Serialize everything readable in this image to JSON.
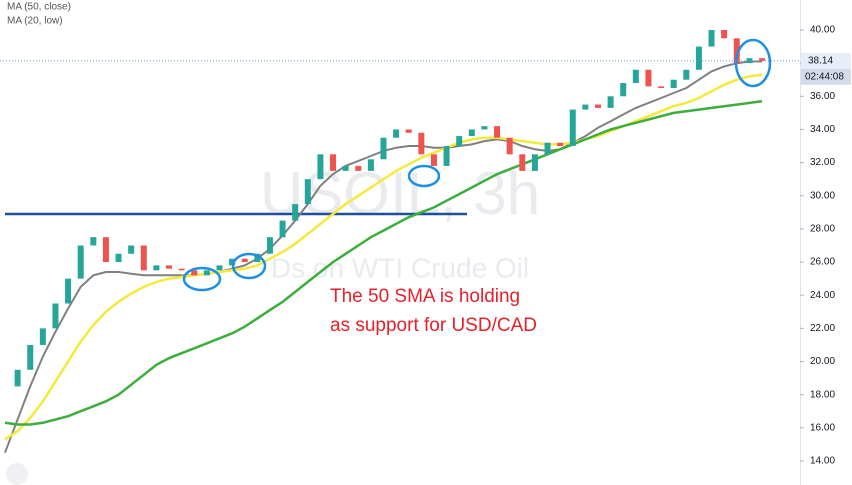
{
  "chart_data": {
    "type": "candlestick",
    "title": "USOIL, 3h",
    "subtitle": "Ds on WTI Crude Oil",
    "legend": [
      "MA (50, close)",
      "MA (20, low)"
    ],
    "annotation": [
      "The 50 SMA is holding",
      "as support for USD/CAD"
    ],
    "countdown": "02:44:08",
    "up_color": "#26a69a",
    "down_color": "#ef5350",
    "close": [
      18.5,
      19.5,
      21,
      22,
      23.5,
      25,
      27,
      27.5,
      26,
      26.5,
      27,
      25.5,
      25.8,
      25.6,
      25.5,
      25.2,
      25.5,
      25.8,
      26.2,
      26,
      26.5,
      27.5,
      28.5,
      29.5,
      31,
      32.5,
      31.5,
      31.8,
      31.5,
      32.2,
      33.5,
      34,
      33.8,
      32.5,
      31.8,
      33,
      33.6,
      34,
      34.2,
      33.5,
      32.5,
      31.5,
      32.5,
      33.2,
      33,
      35.2,
      35.5,
      35.3,
      36,
      36.8,
      37.6,
      36.6,
      36.5,
      37,
      37.6,
      39,
      40,
      39.5,
      38,
      38.3,
      38.14
    ],
    "lines": [
      {
        "color": "#808080",
        "values": [
          14.5,
          16.5,
          18.5,
          20.3,
          21.8,
          23.2,
          24.5,
          25.2,
          25.4,
          25.4,
          25.3,
          25.2,
          25.2,
          25.2,
          25.2,
          25.2,
          25.3,
          25.4,
          25.6,
          25.8,
          26.2,
          26.8,
          27.6,
          28.5,
          29.5,
          30.6,
          31.3,
          31.8,
          32.1,
          32.4,
          32.7,
          32.9,
          33,
          33,
          32.9,
          32.9,
          33,
          33.1,
          33.3,
          33.4,
          33.3,
          33,
          32.8,
          32.7,
          32.8,
          33.2,
          33.6,
          34.1,
          34.5,
          34.9,
          35.3,
          35.6,
          35.9,
          36.2,
          36.5,
          37,
          37.5,
          37.8,
          38,
          38.1,
          38.1
        ]
      },
      {
        "color": "#f5e93b",
        "values": [
          15.3,
          15.8,
          16.6,
          17.6,
          18.8,
          20,
          21.2,
          22.2,
          23,
          23.6,
          24.1,
          24.5,
          24.8,
          25,
          25.1,
          25.2,
          25.3,
          25.4,
          25.5,
          25.6,
          25.8,
          26.2,
          26.6,
          27.1,
          27.7,
          28.3,
          28.9,
          29.5,
          30,
          30.5,
          31,
          31.5,
          31.9,
          32.3,
          32.6,
          32.9,
          33.2,
          33.4,
          33.5,
          33.5,
          33.4,
          33.3,
          33.2,
          33.1,
          33.1,
          33.2,
          33.4,
          33.6,
          33.9,
          34.2,
          34.5,
          34.8,
          35.1,
          35.4,
          35.6,
          35.9,
          36.3,
          36.7,
          37,
          37.2,
          37.3
        ]
      },
      {
        "color": "#3cae3c",
        "values": [
          16.3,
          16.2,
          16.2,
          16.3,
          16.5,
          16.7,
          17,
          17.3,
          17.6,
          18,
          18.6,
          19.2,
          19.8,
          20.2,
          20.5,
          20.8,
          21.1,
          21.4,
          21.7,
          22.1,
          22.6,
          23.1,
          23.6,
          24.2,
          24.8,
          25.4,
          26,
          26.5,
          27,
          27.5,
          27.9,
          28.3,
          28.7,
          29,
          29.3,
          29.7,
          30.1,
          30.5,
          30.9,
          31.3,
          31.6,
          31.9,
          32.2,
          32.5,
          32.8,
          33.1,
          33.4,
          33.7,
          34,
          34.2,
          34.4,
          34.6,
          34.8,
          35,
          35.1,
          35.2,
          35.3,
          35.4,
          35.5,
          35.6,
          35.7
        ]
      }
    ],
    "level": 28.9,
    "level_color": "#1f4e9c",
    "ylim": [
      12.55,
      41.81
    ],
    "yticks": [
      {
        "value": 14,
        "label": "14.00"
      },
      {
        "value": 16,
        "label": "16.00"
      },
      {
        "value": 18,
        "label": "18.00"
      },
      {
        "value": 20,
        "label": "20.00"
      },
      {
        "value": 22,
        "label": "22.00"
      },
      {
        "value": 24,
        "label": "24.00"
      },
      {
        "value": 26,
        "label": "26.00"
      },
      {
        "value": 28,
        "label": "28.00"
      },
      {
        "value": 30,
        "label": "30.00"
      },
      {
        "value": 32,
        "label": "32.00"
      },
      {
        "value": 34,
        "label": "34.00"
      },
      {
        "value": 36,
        "label": "36.00"
      },
      {
        "value": 38,
        "label": "38.00"
      },
      {
        "value": 40,
        "label": "40.00"
      }
    ]
  }
}
